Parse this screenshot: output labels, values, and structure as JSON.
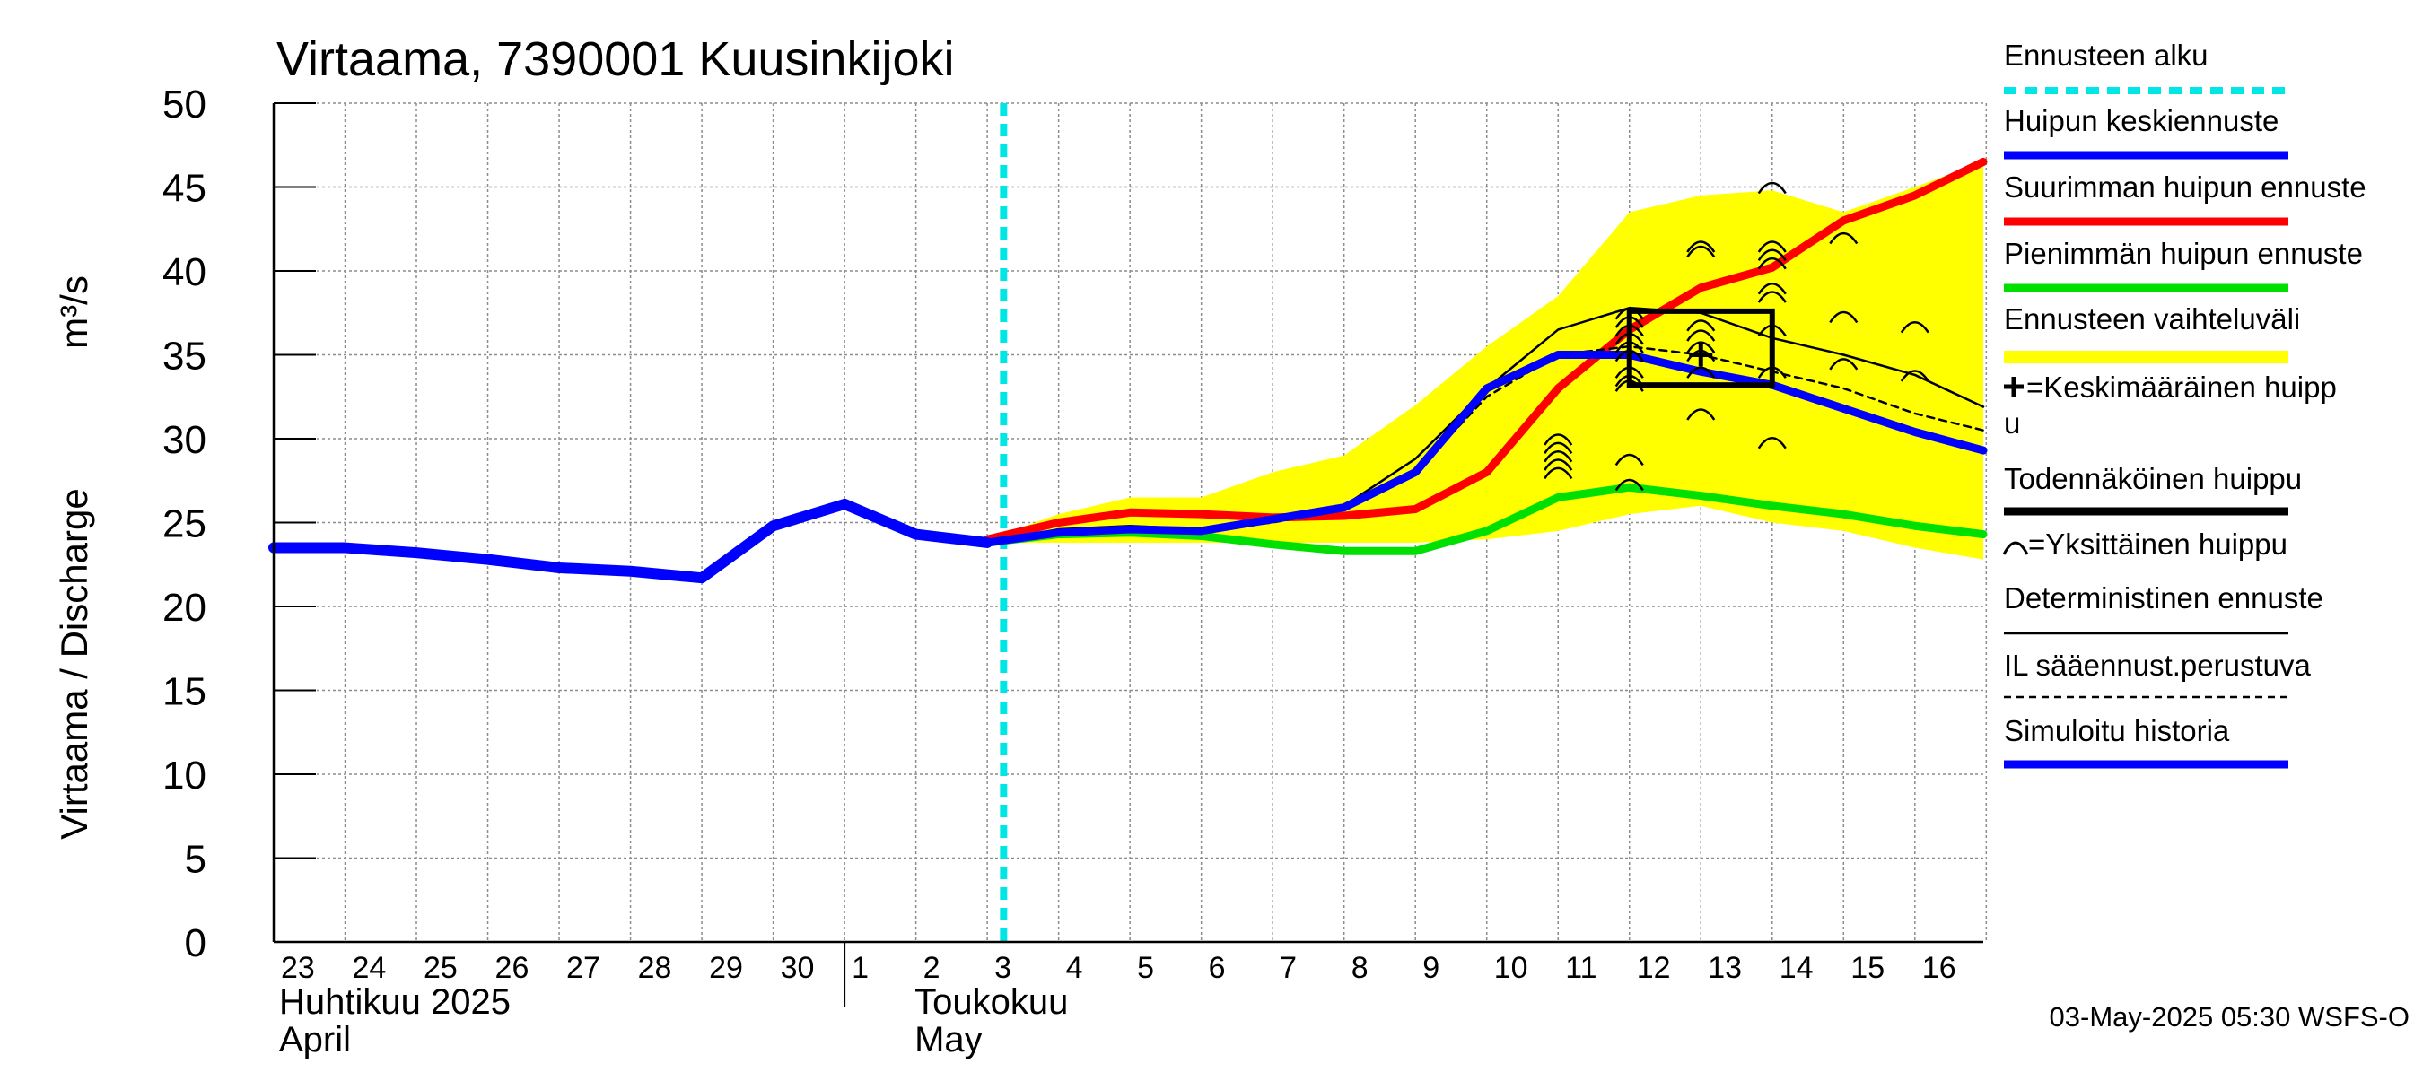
{
  "chart_data": {
    "type": "line",
    "title": "Virtaama, 7390001 Kuusinkijoki",
    "ylabel": "Virtaama / Discharge",
    "yunit": "m³/s",
    "ylim": [
      0,
      50
    ],
    "yticks": [
      0,
      5,
      10,
      15,
      20,
      25,
      30,
      35,
      40,
      45,
      50
    ],
    "xlim": [
      "2025-04-23",
      "2025-05-16 23:00"
    ],
    "grid": true,
    "x_tick_labels": [
      "23",
      "24",
      "25",
      "26",
      "27",
      "28",
      "29",
      "30",
      "1",
      "2",
      "3",
      "4",
      "5",
      "6",
      "7",
      "8",
      "9",
      "10",
      "11",
      "12",
      "13",
      "14",
      "15",
      "16"
    ],
    "month_labels": [
      {
        "fi": "Huhtikuu  2025",
        "en": "April"
      },
      {
        "fi": "Toukokuu",
        "en": "May"
      }
    ],
    "forecast_start": "2025-05-03 05:30",
    "series": [
      {
        "name": "Ennusteen vaihteluväli",
        "kind": "band",
        "color": "#ffff00",
        "x": [
          "2025-05-03",
          "2025-05-04",
          "2025-05-05",
          "2025-05-06",
          "2025-05-07",
          "2025-05-08",
          "2025-05-09",
          "2025-05-10",
          "2025-05-11",
          "2025-05-12",
          "2025-05-13",
          "2025-05-14",
          "2025-05-15",
          "2025-05-16",
          "2025-05-16 23:00"
        ],
        "low": [
          23.8,
          23.8,
          23.8,
          23.8,
          23.8,
          23.8,
          23.8,
          24.0,
          24.5,
          25.5,
          26.0,
          25.0,
          24.5,
          23.5,
          22.8
        ],
        "high": [
          24.0,
          25.5,
          26.5,
          26.5,
          28.0,
          29.0,
          32.0,
          35.5,
          38.5,
          43.5,
          44.5,
          44.8,
          43.5,
          45.0,
          46.5
        ]
      },
      {
        "name": "Suurimman huipun ennuste",
        "kind": "line",
        "color": "#ff0000",
        "x": [
          "2025-05-03",
          "2025-05-04",
          "2025-05-05",
          "2025-05-06",
          "2025-05-07",
          "2025-05-08",
          "2025-05-09",
          "2025-05-10",
          "2025-05-11",
          "2025-05-12",
          "2025-05-13",
          "2025-05-14",
          "2025-05-15",
          "2025-05-16",
          "2025-05-16 23:00"
        ],
        "y": [
          24.0,
          25.0,
          25.6,
          25.5,
          25.3,
          25.4,
          25.8,
          28.0,
          33.0,
          36.5,
          39.0,
          40.2,
          43.0,
          44.5,
          46.5
        ]
      },
      {
        "name": "Pienimmän huipun ennuste",
        "kind": "line",
        "color": "#00e000",
        "x": [
          "2025-05-03",
          "2025-05-04",
          "2025-05-05",
          "2025-05-06",
          "2025-05-07",
          "2025-05-08",
          "2025-05-09",
          "2025-05-10",
          "2025-05-11",
          "2025-05-12",
          "2025-05-13",
          "2025-05-14",
          "2025-05-15",
          "2025-05-16",
          "2025-05-16 23:00"
        ],
        "y": [
          23.8,
          24.3,
          24.4,
          24.2,
          23.7,
          23.3,
          23.3,
          24.5,
          26.5,
          27.1,
          26.6,
          26.0,
          25.5,
          24.8,
          24.3
        ]
      },
      {
        "name": "Deterministinen ennuste",
        "kind": "line",
        "color": "#000000",
        "x": [
          "2025-05-03",
          "2025-05-04",
          "2025-05-05",
          "2025-05-06",
          "2025-05-07",
          "2025-05-08",
          "2025-05-09",
          "2025-05-10",
          "2025-05-11",
          "2025-05-12",
          "2025-05-13",
          "2025-05-14",
          "2025-05-15",
          "2025-05-16",
          "2025-05-16 23:00"
        ],
        "y": [
          23.8,
          24.6,
          24.8,
          24.6,
          25.2,
          26.0,
          28.8,
          33.0,
          36.5,
          37.8,
          37.5,
          36.0,
          35.0,
          33.8,
          31.9
        ]
      },
      {
        "name": "IL sääennust.perustuva",
        "kind": "line",
        "color": "#000000",
        "x": [
          "2025-05-03",
          "2025-05-04",
          "2025-05-05",
          "2025-05-06",
          "2025-05-07",
          "2025-05-08",
          "2025-05-09",
          "2025-05-10",
          "2025-05-11",
          "2025-05-12",
          "2025-05-13",
          "2025-05-14",
          "2025-05-15",
          "2025-05-16",
          "2025-05-16 23:00"
        ],
        "y": [
          23.8,
          24.5,
          24.6,
          24.5,
          25.0,
          25.8,
          28.0,
          32.5,
          35.0,
          35.5,
          35.0,
          34.0,
          33.0,
          31.5,
          30.5
        ]
      },
      {
        "name": "Huipun keskiennuste",
        "kind": "line",
        "color": "#0000ff",
        "x": [
          "2025-05-03",
          "2025-05-04",
          "2025-05-05",
          "2025-05-06",
          "2025-05-07",
          "2025-05-08",
          "2025-05-09",
          "2025-05-10",
          "2025-05-11",
          "2025-05-12",
          "2025-05-13",
          "2025-05-14",
          "2025-05-15",
          "2025-05-16",
          "2025-05-16 23:00"
        ],
        "y": [
          23.8,
          24.4,
          24.6,
          24.5,
          25.2,
          25.9,
          28.0,
          33.0,
          35.0,
          35.0,
          34.0,
          33.2,
          31.8,
          30.4,
          29.3
        ]
      },
      {
        "name": "Simuloitu historia",
        "kind": "line",
        "color": "#0000ff",
        "x": [
          "2025-04-23",
          "2025-04-24",
          "2025-04-25",
          "2025-04-26",
          "2025-04-27",
          "2025-04-28",
          "2025-04-29",
          "2025-04-30",
          "2025-05-01",
          "2025-05-02",
          "2025-05-03"
        ],
        "y": [
          23.5,
          23.5,
          23.2,
          22.8,
          22.3,
          22.1,
          21.7,
          24.8,
          26.1,
          24.3,
          23.8
        ]
      }
    ],
    "single_peaks": [
      {
        "x": "2025-05-11",
        "y": 30.0
      },
      {
        "x": "2025-05-11",
        "y": 29.5
      },
      {
        "x": "2025-05-11",
        "y": 29.0
      },
      {
        "x": "2025-05-11",
        "y": 28.5
      },
      {
        "x": "2025-05-11",
        "y": 28.0
      },
      {
        "x": "2025-05-12",
        "y": 37.5
      },
      {
        "x": "2025-05-12",
        "y": 37.0
      },
      {
        "x": "2025-05-12",
        "y": 36.5
      },
      {
        "x": "2025-05-12",
        "y": 36.0
      },
      {
        "x": "2025-05-12",
        "y": 35.5
      },
      {
        "x": "2025-05-12",
        "y": 35.0
      },
      {
        "x": "2025-05-12",
        "y": 34.0
      },
      {
        "x": "2025-05-12",
        "y": 33.5
      },
      {
        "x": "2025-05-12",
        "y": 33.2
      },
      {
        "x": "2025-05-12",
        "y": 28.8
      },
      {
        "x": "2025-05-12",
        "y": 27.3
      },
      {
        "x": "2025-05-13",
        "y": 41.5
      },
      {
        "x": "2025-05-13",
        "y": 41.2
      },
      {
        "x": "2025-05-13",
        "y": 36.8
      },
      {
        "x": "2025-05-13",
        "y": 36.2
      },
      {
        "x": "2025-05-13",
        "y": 35.5
      },
      {
        "x": "2025-05-13",
        "y": 35.0
      },
      {
        "x": "2025-05-13",
        "y": 34.0
      },
      {
        "x": "2025-05-13",
        "y": 31.5
      },
      {
        "x": "2025-05-14",
        "y": 45.0
      },
      {
        "x": "2025-05-14",
        "y": 41.5
      },
      {
        "x": "2025-05-14",
        "y": 41.0
      },
      {
        "x": "2025-05-14",
        "y": 40.5
      },
      {
        "x": "2025-05-14",
        "y": 39.0
      },
      {
        "x": "2025-05-14",
        "y": 38.5
      },
      {
        "x": "2025-05-14",
        "y": 36.5
      },
      {
        "x": "2025-05-14",
        "y": 34.0
      },
      {
        "x": "2025-05-14",
        "y": 29.8
      },
      {
        "x": "2025-05-15",
        "y": 42.0
      },
      {
        "x": "2025-05-15",
        "y": 37.3
      },
      {
        "x": "2025-05-15",
        "y": 34.5
      },
      {
        "x": "2025-05-16",
        "y": 36.7
      },
      {
        "x": "2025-05-16",
        "y": 33.8
      }
    ],
    "probable_peak_box": {
      "x_from": "2025-05-12",
      "x_to": "2025-05-14",
      "y_from": 33.2,
      "y_to": 37.6
    },
    "mean_peak": {
      "x": "2025-05-13",
      "y": 35.0
    },
    "legend": [
      {
        "label": "Ennusteen alku",
        "style": "dashed",
        "color": "#00e5e5"
      },
      {
        "label": "Huipun keskiennuste",
        "style": "thick",
        "color": "#0000ff"
      },
      {
        "label": "Suurimman huipun ennuste",
        "style": "thick",
        "color": "#ff0000"
      },
      {
        "label": "Pienimmän huipun ennuste",
        "style": "thick",
        "color": "#00e000"
      },
      {
        "label": "Ennusteen vaihteluväli",
        "style": "band",
        "color": "#ffff00"
      },
      {
        "label": "=Keskimääräinen huipp",
        "label_cont": "u",
        "style": "cross-marker",
        "color": "#000000"
      },
      {
        "label": "Todennäköinen huippu",
        "style": "thick",
        "color": "#000000"
      },
      {
        "label": "=Yksittäinen huippu",
        "style": "arc-marker",
        "color": "#000000"
      },
      {
        "label": "Deterministinen ennuste",
        "style": "thin",
        "color": "#000000"
      },
      {
        "label": "IL sääennust.perustuva",
        "style": "dotted",
        "color": "#000000"
      },
      {
        "label": "Simuloitu historia",
        "style": "thick",
        "color": "#0000ff"
      }
    ],
    "footer": "03-May-2025 05:30 WSFS-O"
  }
}
